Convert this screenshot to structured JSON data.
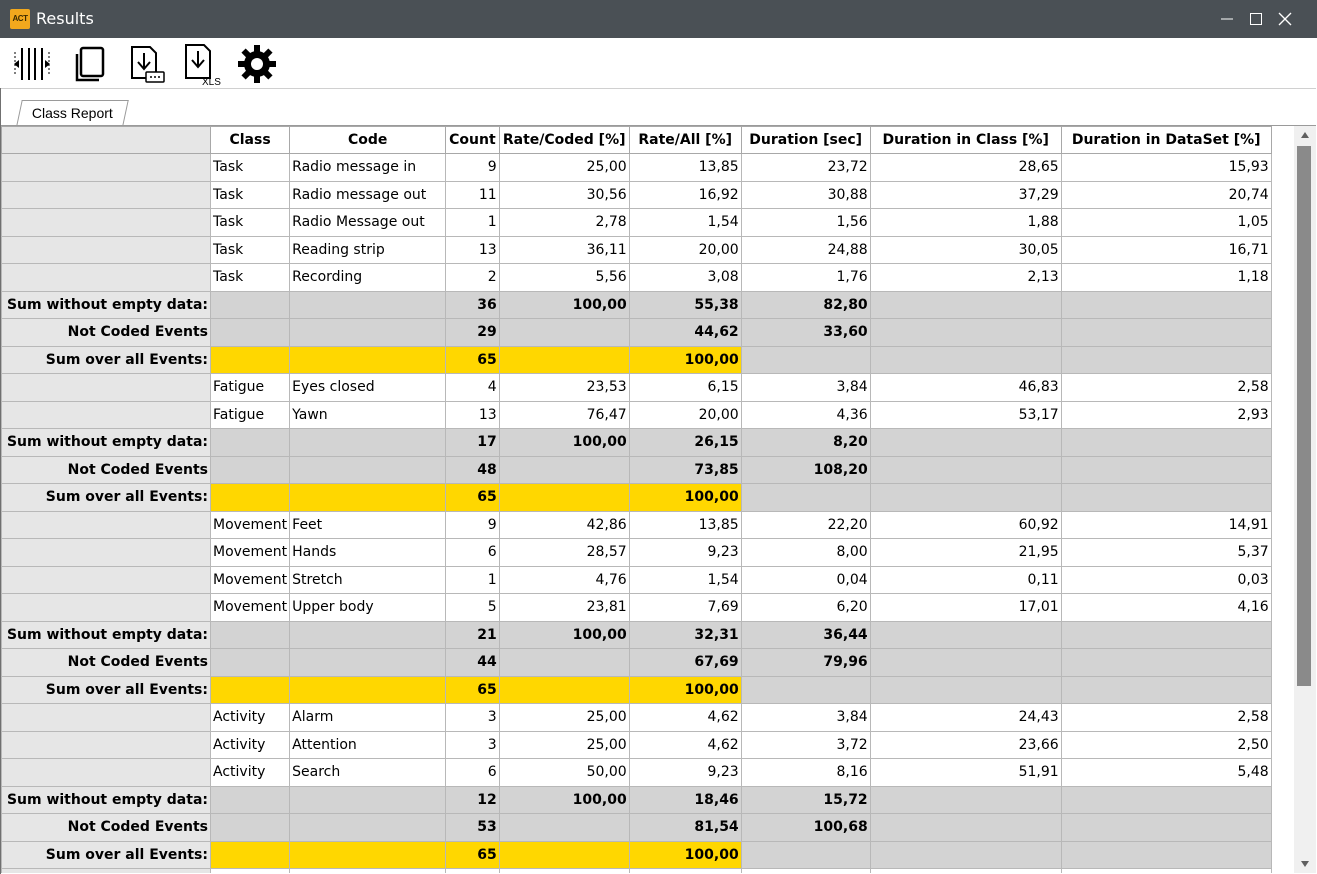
{
  "window": {
    "title": "Results",
    "logo_text": "ACT"
  },
  "toolbar": {
    "tools": [
      "column-adjust-icon",
      "copy-icon",
      "export-text-icon",
      "export-xls-icon",
      "settings-icon"
    ],
    "xls_label": "XLS"
  },
  "tabs": [
    {
      "label": "Class Report"
    }
  ],
  "table": {
    "headers": [
      "Class",
      "Code",
      "Count",
      "Rate/Coded [%]",
      "Rate/All [%]",
      "Duration [sec]",
      "Duration in Class [%]",
      "Duration in DataSet [%]"
    ],
    "rows": [
      {
        "type": "data",
        "label": "",
        "cells": [
          "Task",
          "Radio message in",
          "9",
          "25,00",
          "13,85",
          "23,72",
          "28,65",
          "15,93"
        ]
      },
      {
        "type": "data",
        "label": "",
        "cells": [
          "Task",
          "Radio message out",
          "11",
          "30,56",
          "16,92",
          "30,88",
          "37,29",
          "20,74"
        ]
      },
      {
        "type": "data",
        "label": "",
        "cells": [
          "Task",
          "Radio Message out",
          "1",
          "2,78",
          "1,54",
          "1,56",
          "1,88",
          "1,05"
        ]
      },
      {
        "type": "data",
        "label": "",
        "cells": [
          "Task",
          "Reading strip",
          "13",
          "36,11",
          "20,00",
          "24,88",
          "30,05",
          "16,71"
        ]
      },
      {
        "type": "data",
        "label": "",
        "cells": [
          "Task",
          "Recording",
          "2",
          "5,56",
          "3,08",
          "1,76",
          "2,13",
          "1,18"
        ]
      },
      {
        "type": "sum",
        "label": "Sum without empty data:",
        "cells": [
          "",
          "",
          "36",
          "100,00",
          "55,38",
          "82,80",
          "",
          ""
        ]
      },
      {
        "type": "sum",
        "label": "Not Coded Events",
        "cells": [
          "",
          "",
          "29",
          "",
          "44,62",
          "33,60",
          "",
          ""
        ]
      },
      {
        "type": "total",
        "label": "Sum over all Events:",
        "cells": [
          "",
          "",
          "65",
          "",
          "100,00",
          "",
          "",
          ""
        ]
      },
      {
        "type": "data",
        "label": "",
        "cells": [
          "Fatigue",
          "Eyes closed",
          "4",
          "23,53",
          "6,15",
          "3,84",
          "46,83",
          "2,58"
        ]
      },
      {
        "type": "data",
        "label": "",
        "cells": [
          "Fatigue",
          "Yawn",
          "13",
          "76,47",
          "20,00",
          "4,36",
          "53,17",
          "2,93"
        ]
      },
      {
        "type": "sum",
        "label": "Sum without empty data:",
        "cells": [
          "",
          "",
          "17",
          "100,00",
          "26,15",
          "8,20",
          "",
          ""
        ]
      },
      {
        "type": "sum",
        "label": "Not Coded Events",
        "cells": [
          "",
          "",
          "48",
          "",
          "73,85",
          "108,20",
          "",
          ""
        ]
      },
      {
        "type": "total",
        "label": "Sum over all Events:",
        "cells": [
          "",
          "",
          "65",
          "",
          "100,00",
          "",
          "",
          ""
        ]
      },
      {
        "type": "data",
        "label": "",
        "cells": [
          "Movement",
          "Feet",
          "9",
          "42,86",
          "13,85",
          "22,20",
          "60,92",
          "14,91"
        ]
      },
      {
        "type": "data",
        "label": "",
        "cells": [
          "Movement",
          "Hands",
          "6",
          "28,57",
          "9,23",
          "8,00",
          "21,95",
          "5,37"
        ]
      },
      {
        "type": "data",
        "label": "",
        "cells": [
          "Movement",
          "Stretch",
          "1",
          "4,76",
          "1,54",
          "0,04",
          "0,11",
          "0,03"
        ]
      },
      {
        "type": "data",
        "label": "",
        "cells": [
          "Movement",
          "Upper body",
          "5",
          "23,81",
          "7,69",
          "6,20",
          "17,01",
          "4,16"
        ]
      },
      {
        "type": "sum",
        "label": "Sum without empty data:",
        "cells": [
          "",
          "",
          "21",
          "100,00",
          "32,31",
          "36,44",
          "",
          ""
        ]
      },
      {
        "type": "sum",
        "label": "Not Coded Events",
        "cells": [
          "",
          "",
          "44",
          "",
          "67,69",
          "79,96",
          "",
          ""
        ]
      },
      {
        "type": "total",
        "label": "Sum over all Events:",
        "cells": [
          "",
          "",
          "65",
          "",
          "100,00",
          "",
          "",
          ""
        ]
      },
      {
        "type": "data",
        "label": "",
        "cells": [
          "Activity",
          "Alarm",
          "3",
          "25,00",
          "4,62",
          "3,84",
          "24,43",
          "2,58"
        ]
      },
      {
        "type": "data",
        "label": "",
        "cells": [
          "Activity",
          "Attention",
          "3",
          "25,00",
          "4,62",
          "3,72",
          "23,66",
          "2,50"
        ]
      },
      {
        "type": "data",
        "label": "",
        "cells": [
          "Activity",
          "Search",
          "6",
          "50,00",
          "9,23",
          "8,16",
          "51,91",
          "5,48"
        ]
      },
      {
        "type": "sum",
        "label": "Sum without empty data:",
        "cells": [
          "",
          "",
          "12",
          "100,00",
          "18,46",
          "15,72",
          "",
          ""
        ]
      },
      {
        "type": "sum",
        "label": "Not Coded Events",
        "cells": [
          "",
          "",
          "53",
          "",
          "81,54",
          "100,68",
          "",
          ""
        ]
      },
      {
        "type": "total",
        "label": "Sum over all Events:",
        "cells": [
          "",
          "",
          "65",
          "",
          "100,00",
          "",
          "",
          ""
        ]
      },
      {
        "type": "data",
        "label": "",
        "cells": [
          "",
          "",
          "",
          "",
          "",
          "",
          "",
          ""
        ]
      }
    ]
  },
  "colors": {
    "titlebar": "#4a5055",
    "total_row": "#ffd700",
    "sum_row": "#d3d3d3",
    "row_header": "#e6e6e6"
  }
}
